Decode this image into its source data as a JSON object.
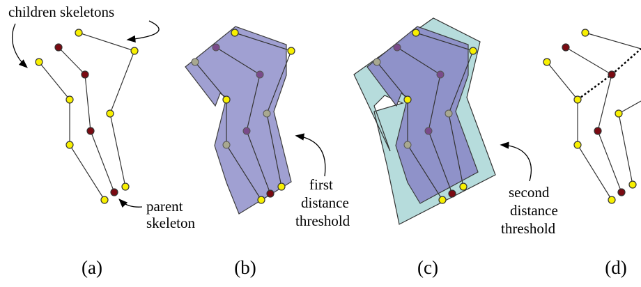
{
  "labels": {
    "children_skeletons": "children skeletons",
    "parent_skeleton_1": "parent",
    "parent_skeleton_2": "skeleton",
    "first_1": "first",
    "first_2": "distance",
    "first_3": "threshold",
    "second_1": "second",
    "second_2": "distance",
    "second_3": "threshold"
  },
  "panels": {
    "a": "(a)",
    "b": "(b)",
    "c": "(c)",
    "d": "(d)"
  },
  "colors": {
    "yellow_joint": "#f8f000",
    "red_joint": "#7a0a12",
    "first_region": "#9b9bd0",
    "second_region": "#b6dcdc"
  }
}
